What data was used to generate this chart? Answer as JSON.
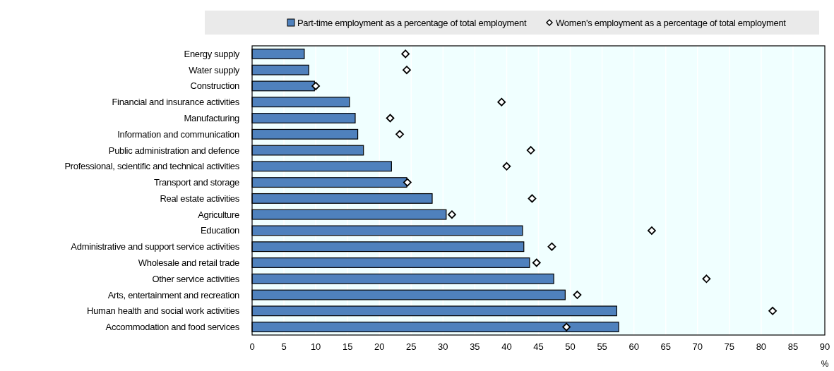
{
  "chart_data": {
    "type": "bar",
    "orientation": "horizontal",
    "xlabel": "%",
    "categories": [
      "Energy supply",
      "Water supply",
      "Construction",
      "Financial and insurance activities",
      "Manufacturing",
      "Information and communication",
      "Public administration and defence",
      "Professional, scientific and technical activities",
      "Transport and storage",
      "Real estate activities",
      "Agriculture",
      "Education",
      "Administrative and support service activities",
      "Wholesale and retail trade",
      "Other service activities",
      "Arts, entertainment and recreation",
      "Human health and social work activities",
      "Accommodation and food services"
    ],
    "series": [
      {
        "name": "Part-time employment as a percentage of total employment",
        "type": "bar",
        "color": "#4f81bd",
        "values": [
          8.2,
          8.9,
          9.8,
          15.3,
          16.2,
          16.6,
          17.5,
          21.9,
          24.3,
          28.3,
          30.5,
          42.5,
          42.7,
          43.6,
          47.4,
          49.2,
          57.3,
          57.6
        ]
      },
      {
        "name": "Women's employment as  a percentage of total employment",
        "type": "scatter",
        "color": "#000000",
        "x": [
          "Energy supply",
          "Water supply",
          "Construction",
          "Financial and insurance activities",
          "Manufacturing",
          "Information and communication",
          "Public administration and defence",
          "Professional, scientific and technical activities",
          "Transport and storage",
          "Real estate activities",
          "Agriculture",
          "Education",
          "Administrative and support service activities",
          "Wholesale and retail trade",
          "Other service activities",
          "Arts, entertainment and recreation",
          "Human health and social work activities",
          "Accommodation and food services"
        ],
        "values": [
          24.1,
          24.3,
          10.0,
          39.2,
          21.7,
          23.2,
          43.8,
          40.0,
          24.4,
          44.0,
          31.4,
          62.8,
          47.1,
          44.7,
          71.4,
          51.1,
          81.8,
          49.4
        ]
      }
    ],
    "xlim": [
      0,
      90
    ],
    "xticks": [
      0,
      5,
      10,
      15,
      20,
      25,
      30,
      35,
      40,
      45,
      50,
      55,
      60,
      65,
      70,
      75,
      80,
      85,
      90
    ],
    "grid": "x",
    "legend": "top",
    "marker": "diamond"
  }
}
